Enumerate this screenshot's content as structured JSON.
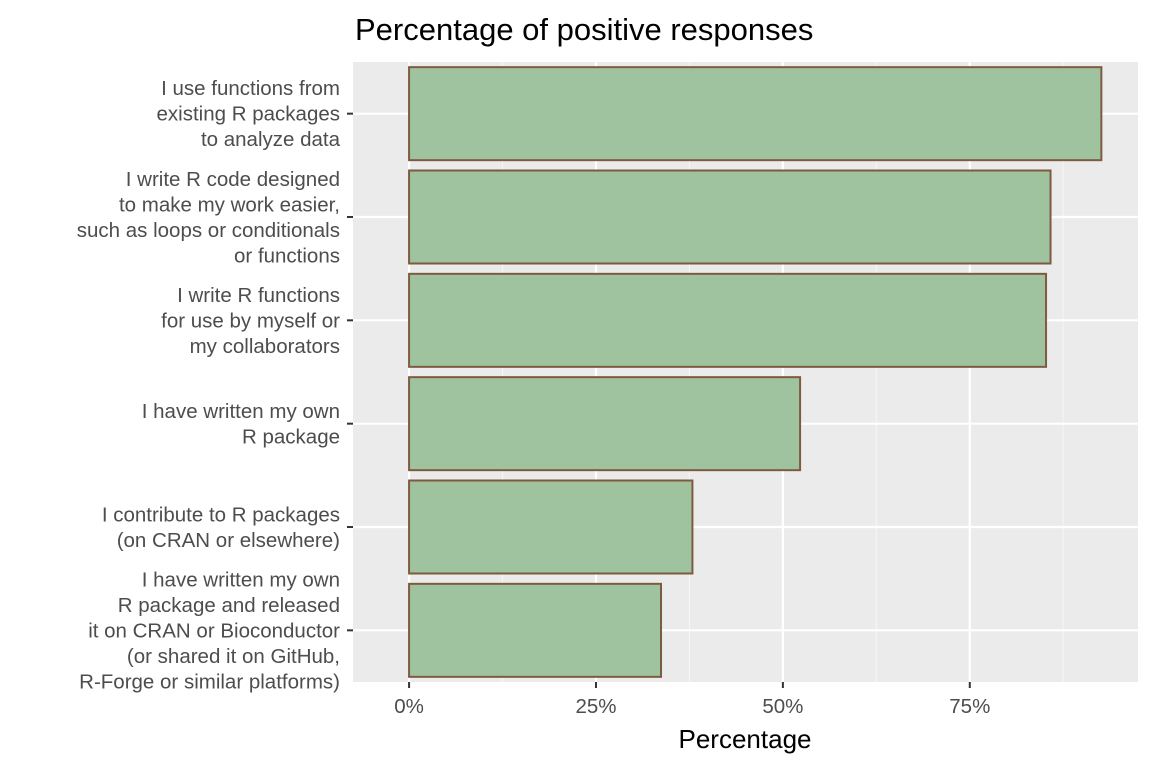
{
  "chart_data": {
    "type": "bar",
    "orientation": "horizontal",
    "title": "Percentage of positive responses",
    "xlabel": "Percentage",
    "ylabel": "",
    "xlim": [
      -7.5,
      97.5
    ],
    "x_ticks": [
      0,
      25,
      50,
      75
    ],
    "x_tick_labels": [
      "0%",
      "25%",
      "50%",
      "75%"
    ],
    "x_minor_ticks": [
      12.5,
      37.5,
      62.5,
      87.5
    ],
    "grid": true,
    "legend": "none",
    "categories": [
      [
        "I use functions from",
        "existing R packages",
        "to analyze data"
      ],
      [
        "I write R code designed",
        "to make my work easier,",
        "such as loops or conditionals",
        "or functions"
      ],
      [
        "I write R functions",
        "for use by myself or",
        "my collaborators"
      ],
      [
        "I have written my own",
        "R package"
      ],
      [
        "I contribute to R packages",
        "(on CRAN or elsewhere)"
      ],
      [
        "I have written my own",
        "R package and released",
        "it on CRAN or Bioconductor",
        "(or shared it on GitHub,",
        "R-Forge or similar platforms)"
      ]
    ],
    "values": [
      92.6,
      85.8,
      85.2,
      52.3,
      37.9,
      33.7
    ],
    "colors": {
      "bar_fill": "#9fc39e",
      "bar_stroke": "#7e5a40",
      "panel_background": "#ebebeb",
      "grid_major": "#ffffff",
      "grid_minor": "#f5f5f5",
      "tick_text": "#4d4d4d",
      "tick_mark": "#333333",
      "title_text": "#000000"
    }
  }
}
